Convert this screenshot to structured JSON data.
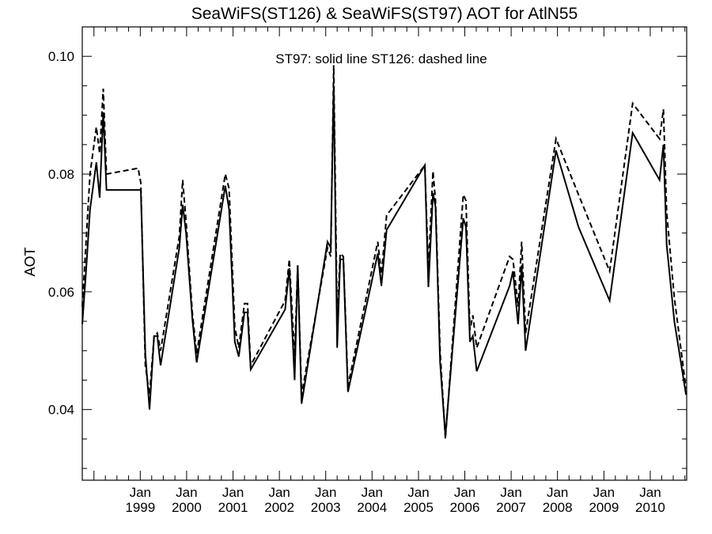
{
  "chart_data": {
    "type": "line",
    "title": "SeaWiFS(ST126) & SeaWiFS(ST97)  AOT for AtlN55",
    "annotation": "ST97: solid line   ST126: dashed line",
    "xlabel": "",
    "ylabel": "AOT",
    "xlim": [
      "1997-10-01",
      "2010-10-15"
    ],
    "ylim": [
      0.028,
      0.105
    ],
    "y_ticks": [
      0.04,
      0.06,
      0.08,
      0.1
    ],
    "y_tick_labels": [
      "0.04",
      "0.06",
      "0.08",
      "0.10"
    ],
    "x_ticks": [
      "1999-01-01",
      "2000-01-01",
      "2001-01-01",
      "2002-01-01",
      "2003-01-01",
      "2004-01-01",
      "2005-01-01",
      "2006-01-01",
      "2007-01-01",
      "2008-01-01",
      "2009-01-01",
      "2010-01-01"
    ],
    "x_tick_labels": [
      {
        "month": "Jan",
        "year": "1999"
      },
      {
        "month": "Jan",
        "year": "2000"
      },
      {
        "month": "Jan",
        "year": "2001"
      },
      {
        "month": "Jan",
        "year": "2002"
      },
      {
        "month": "Jan",
        "year": "2003"
      },
      {
        "month": "Jan",
        "year": "2004"
      },
      {
        "month": "Jan",
        "year": "2005"
      },
      {
        "month": "Jan",
        "year": "2006"
      },
      {
        "month": "Jan",
        "year": "2007"
      },
      {
        "month": "Jan",
        "year": "2008"
      },
      {
        "month": "Jan",
        "year": "2009"
      },
      {
        "month": "Jan",
        "year": "2010"
      }
    ],
    "grid": false,
    "series": [
      {
        "name": "ST97",
        "line_style": "solid",
        "color": "#000000",
        "points": [
          [
            "1997-10-01",
            0.0545
          ],
          [
            "1997-11-01",
            0.064
          ],
          [
            "1997-12-01",
            0.074
          ],
          [
            "1998-01-20",
            0.082
          ],
          [
            "1998-02-15",
            0.076
          ],
          [
            "1998-03-15",
            0.0905
          ],
          [
            "1998-04-10",
            0.0773
          ],
          [
            "1998-12-15",
            0.0773
          ],
          [
            "1999-01-05",
            0.0773
          ],
          [
            "1999-02-10",
            0.0495
          ],
          [
            "1999-03-15",
            0.04
          ],
          [
            "1999-04-20",
            0.0525
          ],
          [
            "1999-05-15",
            0.0525
          ],
          [
            "1999-06-10",
            0.0475
          ],
          [
            "1999-11-05",
            0.0675
          ],
          [
            "1999-12-01",
            0.0748
          ],
          [
            "1999-12-28",
            0.07
          ],
          [
            "2000-02-15",
            0.0555
          ],
          [
            "2000-03-20",
            0.048
          ],
          [
            "2000-11-01",
            0.078
          ],
          [
            "2000-12-01",
            0.074
          ],
          [
            "2001-01-15",
            0.0515
          ],
          [
            "2001-02-15",
            0.049
          ],
          [
            "2001-04-01",
            0.0565
          ],
          [
            "2001-04-25",
            0.0565
          ],
          [
            "2001-05-20",
            0.0468
          ],
          [
            "2002-02-15",
            0.057
          ],
          [
            "2002-03-20",
            0.064
          ],
          [
            "2002-05-01",
            0.045
          ],
          [
            "2002-05-25",
            0.0645
          ],
          [
            "2002-06-25",
            0.041
          ],
          [
            "2003-01-15",
            0.0685
          ],
          [
            "2003-02-10",
            0.0675
          ],
          [
            "2003-03-05",
            0.095
          ],
          [
            "2003-04-01",
            0.0505
          ],
          [
            "2003-04-25",
            0.0655
          ],
          [
            "2003-05-20",
            0.0655
          ],
          [
            "2003-06-25",
            0.043
          ],
          [
            "2004-02-15",
            0.0665
          ],
          [
            "2004-03-15",
            0.061
          ],
          [
            "2004-04-25",
            0.0705
          ],
          [
            "2005-02-20",
            0.0815
          ],
          [
            "2005-03-20",
            0.0608
          ],
          [
            "2005-04-25",
            0.0768
          ],
          [
            "2005-05-15",
            0.0745
          ],
          [
            "2005-06-20",
            0.048
          ],
          [
            "2005-08-01",
            0.0355
          ],
          [
            "2005-12-20",
            0.0725
          ],
          [
            "2006-01-10",
            0.071
          ],
          [
            "2006-02-10",
            0.0515
          ],
          [
            "2006-03-05",
            0.0525
          ],
          [
            "2006-04-05",
            0.0465
          ],
          [
            "2006-12-20",
            0.061
          ],
          [
            "2007-01-15",
            0.0635
          ],
          [
            "2007-02-25",
            0.0545
          ],
          [
            "2007-03-25",
            0.0645
          ],
          [
            "2007-04-25",
            0.05
          ],
          [
            "2007-12-20",
            0.084
          ],
          [
            "2008-06-15",
            0.071
          ],
          [
            "2009-02-15",
            0.0585
          ],
          [
            "2009-08-15",
            0.087
          ],
          [
            "2010-03-15",
            0.079
          ],
          [
            "2010-04-15",
            0.085
          ],
          [
            "2010-05-10",
            0.068
          ],
          [
            "2010-07-10",
            0.055
          ],
          [
            "2010-10-10",
            0.0425
          ]
        ]
      },
      {
        "name": "ST126",
        "line_style": "dashed",
        "color": "#000000",
        "points": [
          [
            "1997-10-01",
            0.0575
          ],
          [
            "1997-11-01",
            0.069
          ],
          [
            "1997-12-01",
            0.08
          ],
          [
            "1998-01-20",
            0.088
          ],
          [
            "1998-02-15",
            0.0835
          ],
          [
            "1998-03-15",
            0.0945
          ],
          [
            "1998-04-10",
            0.08
          ],
          [
            "1998-12-15",
            0.081
          ],
          [
            "1999-01-05",
            0.0785
          ],
          [
            "1999-02-10",
            0.0475
          ],
          [
            "1999-03-15",
            0.0425
          ],
          [
            "1999-04-20",
            0.0525
          ],
          [
            "1999-05-15",
            0.053
          ],
          [
            "1999-06-10",
            0.05
          ],
          [
            "1999-11-05",
            0.0695
          ],
          [
            "1999-12-01",
            0.079
          ],
          [
            "1999-12-28",
            0.072
          ],
          [
            "2000-02-15",
            0.0565
          ],
          [
            "2000-03-20",
            0.0495
          ],
          [
            "2000-11-01",
            0.08
          ],
          [
            "2000-12-01",
            0.0775
          ],
          [
            "2001-01-15",
            0.054
          ],
          [
            "2001-02-15",
            0.0505
          ],
          [
            "2001-04-01",
            0.058
          ],
          [
            "2001-04-25",
            0.058
          ],
          [
            "2001-05-20",
            0.0475
          ],
          [
            "2002-02-15",
            0.0585
          ],
          [
            "2002-03-20",
            0.0655
          ],
          [
            "2002-05-01",
            0.049
          ],
          [
            "2002-05-25",
            0.0645
          ],
          [
            "2002-06-25",
            0.0425
          ],
          [
            "2003-01-15",
            0.0675
          ],
          [
            "2003-02-10",
            0.066
          ],
          [
            "2003-03-05",
            0.0985
          ],
          [
            "2003-04-01",
            0.055
          ],
          [
            "2003-04-25",
            0.0665
          ],
          [
            "2003-05-20",
            0.066
          ],
          [
            "2003-06-25",
            0.044
          ],
          [
            "2004-02-15",
            0.0685
          ],
          [
            "2004-03-15",
            0.063
          ],
          [
            "2004-04-25",
            0.073
          ],
          [
            "2005-02-20",
            0.0815
          ],
          [
            "2005-03-20",
            0.064
          ],
          [
            "2005-04-25",
            0.0805
          ],
          [
            "2005-05-15",
            0.0755
          ],
          [
            "2005-06-20",
            0.05
          ],
          [
            "2005-08-01",
            0.035
          ],
          [
            "2005-12-20",
            0.0765
          ],
          [
            "2006-01-10",
            0.0755
          ],
          [
            "2006-02-10",
            0.0535
          ],
          [
            "2006-03-05",
            0.056
          ],
          [
            "2006-04-05",
            0.0505
          ],
          [
            "2006-12-20",
            0.066
          ],
          [
            "2007-01-15",
            0.0655
          ],
          [
            "2007-02-25",
            0.0575
          ],
          [
            "2007-03-25",
            0.0685
          ],
          [
            "2007-04-25",
            0.053
          ],
          [
            "2007-12-20",
            0.086
          ],
          [
            "2008-06-15",
            0.0765
          ],
          [
            "2009-02-15",
            0.0635
          ],
          [
            "2009-08-15",
            0.092
          ],
          [
            "2010-03-15",
            0.086
          ],
          [
            "2010-04-15",
            0.091
          ],
          [
            "2010-05-10",
            0.0735
          ],
          [
            "2010-07-10",
            0.059
          ],
          [
            "2010-10-10",
            0.0435
          ]
        ]
      }
    ]
  }
}
